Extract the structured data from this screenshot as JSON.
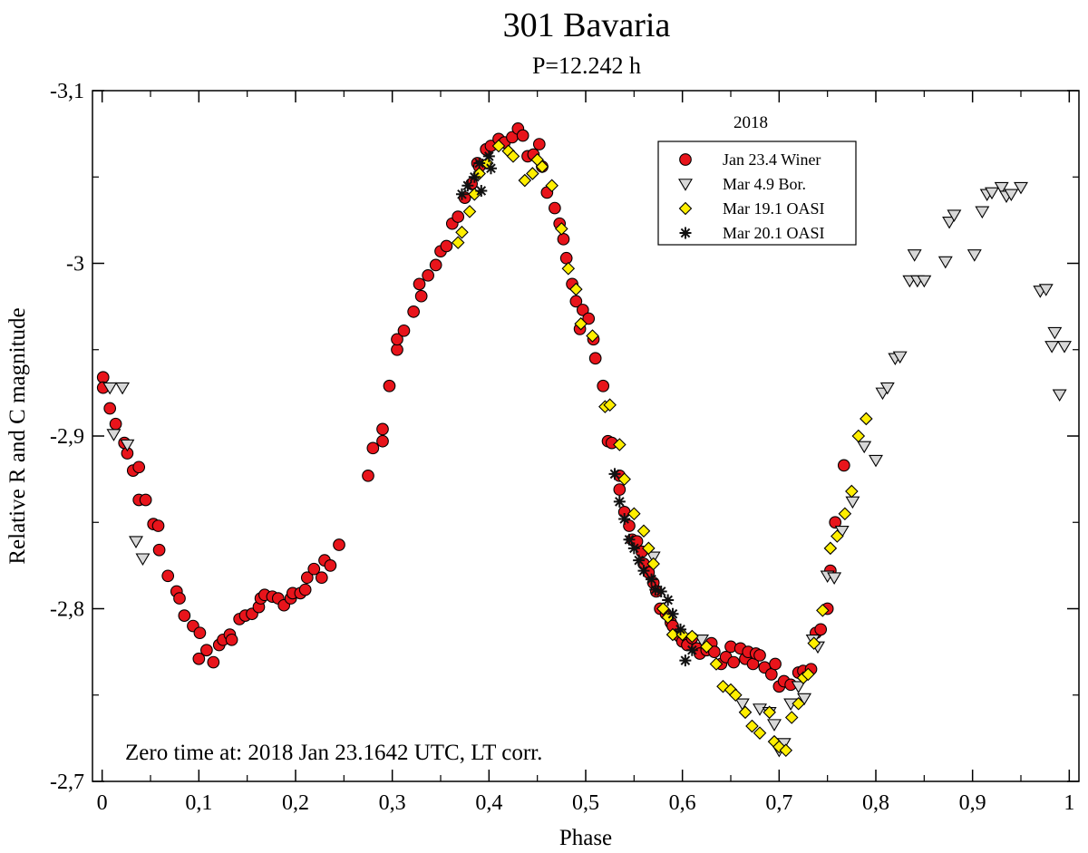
{
  "chart_data": {
    "type": "scatter",
    "title": "301 Bavaria",
    "subtitle": "P=12.242 h",
    "xlabel": "Phase",
    "ylabel": "Relative R and C magnitude",
    "xlim": [
      -0.01,
      1.01
    ],
    "ylim": [
      -2.7,
      -3.1
    ],
    "y_inverted": true,
    "x_ticks": [
      0,
      0.1,
      0.2,
      0.3,
      0.4,
      0.5,
      0.6,
      0.7,
      0.8,
      0.9,
      1
    ],
    "x_tick_labels": [
      "0",
      "0,1",
      "0,2",
      "0,3",
      "0,4",
      "0,5",
      "0,6",
      "0,7",
      "0,8",
      "0,9",
      "1"
    ],
    "y_ticks": [
      -3.1,
      -3.0,
      -2.9,
      -2.8,
      -2.7
    ],
    "y_tick_labels": [
      "-3,1",
      "-3",
      "-2,9",
      "-2,8",
      "-2,7"
    ],
    "grid": false,
    "legend": {
      "title": "2018",
      "placement": "top-right"
    },
    "annotation": "Zero time at: 2018 Jan 23.1642 UTC, LT corr.",
    "series": [
      {
        "name": "Jan 23.4 Winer",
        "marker": "circle",
        "color": "#e8141b",
        "points": [
          [
            0.001,
            -2.934
          ],
          [
            0.001,
            -2.928
          ],
          [
            0.008,
            -2.916
          ],
          [
            0.014,
            -2.907
          ],
          [
            0.023,
            -2.896
          ],
          [
            0.026,
            -2.89
          ],
          [
            0.032,
            -2.88
          ],
          [
            0.038,
            -2.882
          ],
          [
            0.038,
            -2.863
          ],
          [
            0.045,
            -2.863
          ],
          [
            0.053,
            -2.849
          ],
          [
            0.058,
            -2.848
          ],
          [
            0.059,
            -2.834
          ],
          [
            0.068,
            -2.819
          ],
          [
            0.077,
            -2.81
          ],
          [
            0.08,
            -2.806
          ],
          [
            0.085,
            -2.796
          ],
          [
            0.094,
            -2.79
          ],
          [
            0.1,
            -2.771
          ],
          [
            0.101,
            -2.786
          ],
          [
            0.108,
            -2.776
          ],
          [
            0.115,
            -2.769
          ],
          [
            0.121,
            -2.779
          ],
          [
            0.125,
            -2.782
          ],
          [
            0.132,
            -2.785
          ],
          [
            0.134,
            -2.782
          ],
          [
            0.142,
            -2.794
          ],
          [
            0.148,
            -2.796
          ],
          [
            0.155,
            -2.797
          ],
          [
            0.162,
            -2.801
          ],
          [
            0.164,
            -2.806
          ],
          [
            0.168,
            -2.808
          ],
          [
            0.176,
            -2.807
          ],
          [
            0.182,
            -2.806
          ],
          [
            0.188,
            -2.802
          ],
          [
            0.195,
            -2.806
          ],
          [
            0.197,
            -2.809
          ],
          [
            0.205,
            -2.809
          ],
          [
            0.21,
            -2.811
          ],
          [
            0.212,
            -2.818
          ],
          [
            0.219,
            -2.823
          ],
          [
            0.227,
            -2.818
          ],
          [
            0.23,
            -2.828
          ],
          [
            0.236,
            -2.825
          ],
          [
            0.245,
            -2.837
          ],
          [
            0.275,
            -2.877
          ],
          [
            0.28,
            -2.893
          ],
          [
            0.29,
            -2.897
          ],
          [
            0.29,
            -2.904
          ],
          [
            0.297,
            -2.929
          ],
          [
            0.305,
            -2.95
          ],
          [
            0.305,
            -2.956
          ],
          [
            0.312,
            -2.961
          ],
          [
            0.322,
            -2.972
          ],
          [
            0.328,
            -2.988
          ],
          [
            0.33,
            -2.981
          ],
          [
            0.337,
            -2.993
          ],
          [
            0.345,
            -2.999
          ],
          [
            0.35,
            -3.007
          ],
          [
            0.356,
            -3.01
          ],
          [
            0.362,
            -3.023
          ],
          [
            0.368,
            -3.027
          ],
          [
            0.375,
            -3.038
          ],
          [
            0.382,
            -3.046
          ],
          [
            0.388,
            -3.058
          ],
          [
            0.39,
            -3.056
          ],
          [
            0.397,
            -3.066
          ],
          [
            0.402,
            -3.068
          ],
          [
            0.41,
            -3.072
          ],
          [
            0.416,
            -3.07
          ],
          [
            0.424,
            -3.073
          ],
          [
            0.43,
            -3.078
          ],
          [
            0.435,
            -3.074
          ],
          [
            0.44,
            -3.062
          ],
          [
            0.446,
            -3.063
          ],
          [
            0.452,
            -3.069
          ],
          [
            0.455,
            -3.056
          ],
          [
            0.46,
            -3.041
          ],
          [
            0.468,
            -3.032
          ],
          [
            0.473,
            -3.023
          ],
          [
            0.477,
            -3.014
          ],
          [
            0.48,
            -3.003
          ],
          [
            0.486,
            -2.988
          ],
          [
            0.49,
            -2.978
          ],
          [
            0.494,
            -2.962
          ],
          [
            0.497,
            -2.973
          ],
          [
            0.503,
            -2.968
          ],
          [
            0.508,
            -2.956
          ],
          [
            0.51,
            -2.945
          ],
          [
            0.518,
            -2.929
          ],
          [
            0.523,
            -2.897
          ],
          [
            0.527,
            -2.896
          ],
          [
            0.535,
            -2.877
          ],
          [
            0.535,
            -2.869
          ],
          [
            0.54,
            -2.856
          ],
          [
            0.545,
            -2.848
          ],
          [
            0.548,
            -2.84
          ],
          [
            0.553,
            -2.839
          ],
          [
            0.558,
            -2.833
          ],
          [
            0.56,
            -2.826
          ],
          [
            0.565,
            -2.821
          ],
          [
            0.57,
            -2.815
          ],
          [
            0.573,
            -2.81
          ],
          [
            0.577,
            -2.8
          ],
          [
            0.583,
            -2.797
          ],
          [
            0.588,
            -2.792
          ],
          [
            0.59,
            -2.79
          ],
          [
            0.597,
            -2.784
          ],
          [
            0.6,
            -2.781
          ],
          [
            0.605,
            -2.779
          ],
          [
            0.61,
            -2.783
          ],
          [
            0.615,
            -2.777
          ],
          [
            0.618,
            -2.774
          ],
          [
            0.625,
            -2.776
          ],
          [
            0.63,
            -2.78
          ],
          [
            0.633,
            -2.775
          ],
          [
            0.64,
            -2.768
          ],
          [
            0.645,
            -2.772
          ],
          [
            0.65,
            -2.778
          ],
          [
            0.653,
            -2.769
          ],
          [
            0.66,
            -2.777
          ],
          [
            0.665,
            -2.771
          ],
          [
            0.668,
            -2.775
          ],
          [
            0.673,
            -2.768
          ],
          [
            0.676,
            -2.774
          ],
          [
            0.68,
            -2.773
          ],
          [
            0.685,
            -2.766
          ],
          [
            0.692,
            -2.762
          ],
          [
            0.696,
            -2.768
          ],
          [
            0.7,
            -2.755
          ],
          [
            0.705,
            -2.758
          ],
          [
            0.712,
            -2.756
          ],
          [
            0.72,
            -2.763
          ],
          [
            0.725,
            -2.764
          ],
          [
            0.733,
            -2.765
          ],
          [
            0.738,
            -2.786
          ],
          [
            0.743,
            -2.788
          ],
          [
            0.75,
            -2.8
          ],
          [
            0.753,
            -2.822
          ],
          [
            0.758,
            -2.85
          ],
          [
            0.767,
            -2.883
          ]
        ]
      },
      {
        "name": "Mar 4.9 Bor.",
        "marker": "triangle-down",
        "color": "#d8d8d8",
        "points": [
          [
            0.008,
            -2.928
          ],
          [
            0.012,
            -2.901
          ],
          [
            0.021,
            -2.928
          ],
          [
            0.026,
            -2.895
          ],
          [
            0.035,
            -2.839
          ],
          [
            0.042,
            -2.829
          ],
          [
            0.57,
            -2.83
          ],
          [
            0.62,
            -2.782
          ],
          [
            0.662,
            -2.745
          ],
          [
            0.68,
            -2.742
          ],
          [
            0.69,
            -2.74
          ],
          [
            0.695,
            -2.733
          ],
          [
            0.7,
            -2.718
          ],
          [
            0.705,
            -2.722
          ],
          [
            0.712,
            -2.745
          ],
          [
            0.72,
            -2.755
          ],
          [
            0.726,
            -2.748
          ],
          [
            0.735,
            -2.782
          ],
          [
            0.74,
            -2.778
          ],
          [
            0.75,
            -2.819
          ],
          [
            0.757,
            -2.818
          ],
          [
            0.765,
            -2.845
          ],
          [
            0.776,
            -2.862
          ],
          [
            0.788,
            -2.894
          ],
          [
            0.8,
            -2.886
          ],
          [
            0.807,
            -2.925
          ],
          [
            0.812,
            -2.928
          ],
          [
            0.82,
            -2.945
          ],
          [
            0.825,
            -2.946
          ],
          [
            0.835,
            -2.99
          ],
          [
            0.843,
            -2.99
          ],
          [
            0.84,
            -3.005
          ],
          [
            0.85,
            -2.99
          ],
          [
            0.872,
            -3.001
          ],
          [
            0.876,
            -3.024
          ],
          [
            0.881,
            -3.028
          ],
          [
            0.91,
            -3.03
          ],
          [
            0.902,
            -3.005
          ],
          [
            0.915,
            -3.04
          ],
          [
            0.92,
            -3.041
          ],
          [
            0.93,
            -3.044
          ],
          [
            0.935,
            -3.039
          ],
          [
            0.94,
            -3.04
          ],
          [
            0.95,
            -3.044
          ],
          [
            0.97,
            -2.984
          ],
          [
            0.976,
            -2.985
          ],
          [
            0.982,
            -2.952
          ],
          [
            0.985,
            -2.96
          ],
          [
            0.99,
            -2.924
          ],
          [
            0.995,
            -2.952
          ]
        ]
      },
      {
        "name": "Mar 19.1 OASI",
        "marker": "diamond",
        "color": "#ffee00",
        "points": [
          [
            0.368,
            -3.012
          ],
          [
            0.372,
            -3.018
          ],
          [
            0.38,
            -3.03
          ],
          [
            0.385,
            -3.04
          ],
          [
            0.39,
            -3.052
          ],
          [
            0.398,
            -3.058
          ],
          [
            0.41,
            -3.068
          ],
          [
            0.42,
            -3.065
          ],
          [
            0.425,
            -3.062
          ],
          [
            0.437,
            -3.048
          ],
          [
            0.445,
            -3.052
          ],
          [
            0.45,
            -3.06
          ],
          [
            0.455,
            -3.056
          ],
          [
            0.465,
            -3.045
          ],
          [
            0.475,
            -3.02
          ],
          [
            0.482,
            -2.997
          ],
          [
            0.49,
            -2.985
          ],
          [
            0.495,
            -2.965
          ],
          [
            0.507,
            -2.958
          ],
          [
            0.52,
            -2.917
          ],
          [
            0.525,
            -2.918
          ],
          [
            0.535,
            -2.895
          ],
          [
            0.54,
            -2.875
          ],
          [
            0.55,
            -2.855
          ],
          [
            0.56,
            -2.845
          ],
          [
            0.565,
            -2.835
          ],
          [
            0.57,
            -2.826
          ],
          [
            0.58,
            -2.8
          ],
          [
            0.585,
            -2.795
          ],
          [
            0.59,
            -2.785
          ],
          [
            0.6,
            -2.785
          ],
          [
            0.61,
            -2.784
          ],
          [
            0.625,
            -2.778
          ],
          [
            0.635,
            -2.768
          ],
          [
            0.642,
            -2.755
          ],
          [
            0.65,
            -2.753
          ],
          [
            0.655,
            -2.75
          ],
          [
            0.665,
            -2.74
          ],
          [
            0.672,
            -2.732
          ],
          [
            0.68,
            -2.728
          ],
          [
            0.69,
            -2.74
          ],
          [
            0.695,
            -2.723
          ],
          [
            0.7,
            -2.72
          ],
          [
            0.707,
            -2.718
          ],
          [
            0.713,
            -2.737
          ],
          [
            0.72,
            -2.745
          ],
          [
            0.725,
            -2.76
          ],
          [
            0.73,
            -2.762
          ],
          [
            0.736,
            -2.78
          ],
          [
            0.745,
            -2.799
          ],
          [
            0.753,
            -2.835
          ],
          [
            0.76,
            -2.842
          ],
          [
            0.768,
            -2.855
          ],
          [
            0.775,
            -2.868
          ],
          [
            0.782,
            -2.9
          ],
          [
            0.79,
            -2.91
          ]
        ]
      },
      {
        "name": "Mar 20.1 OASI",
        "marker": "asterisk",
        "color": "#111111",
        "points": [
          [
            0.372,
            -3.04
          ],
          [
            0.378,
            -3.045
          ],
          [
            0.385,
            -3.05
          ],
          [
            0.39,
            -3.058
          ],
          [
            0.392,
            -3.042
          ],
          [
            0.4,
            -3.062
          ],
          [
            0.402,
            -3.055
          ],
          [
            0.53,
            -2.878
          ],
          [
            0.535,
            -2.862
          ],
          [
            0.54,
            -2.852
          ],
          [
            0.545,
            -2.84
          ],
          [
            0.55,
            -2.835
          ],
          [
            0.555,
            -2.828
          ],
          [
            0.56,
            -2.822
          ],
          [
            0.568,
            -2.817
          ],
          [
            0.572,
            -2.811
          ],
          [
            0.578,
            -2.81
          ],
          [
            0.585,
            -2.805
          ],
          [
            0.59,
            -2.797
          ],
          [
            0.598,
            -2.788
          ],
          [
            0.603,
            -2.77
          ],
          [
            0.61,
            -2.776
          ]
        ]
      }
    ]
  }
}
